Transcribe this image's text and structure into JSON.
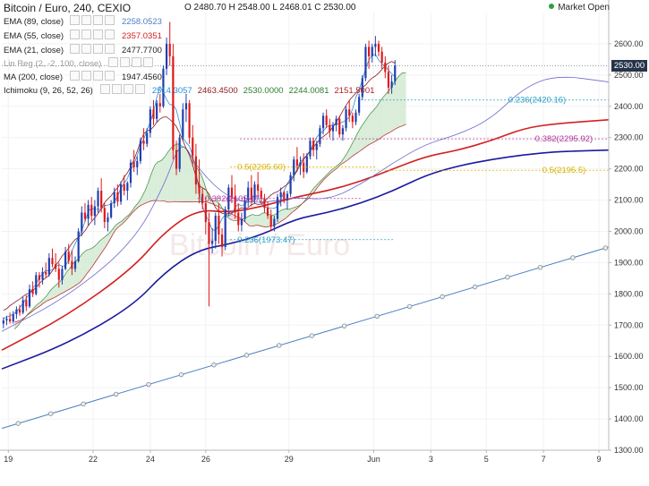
{
  "header": {
    "title": "Bitcoin / Euro, 240, CEXIO",
    "ohlc": "O 2480.70 H 2548.00 L 2468.01 C 2530.00",
    "market_status": "Market Open",
    "last_price": "2530.00"
  },
  "indicators": [
    {
      "name": "EMA (89, close)",
      "values": [
        "2258.0523"
      ],
      "color": "#4d7fc4"
    },
    {
      "name": "EMA (55, close)",
      "values": [
        "2357.0351"
      ],
      "color": "#d32020"
    },
    {
      "name": "EMA (21, close)",
      "values": [
        "2477.7700"
      ],
      "color": "#222222"
    },
    {
      "name": "Lin Reg (2, -2, 100, close)",
      "values": [],
      "color": "#999999"
    },
    {
      "name": "MA (200, close)",
      "values": [
        "1947.4560"
      ],
      "color": "#222222"
    },
    {
      "name": "Ichimoku (9, 26, 52, 26)",
      "values": [
        "2514.3057",
        "2463.4500",
        "2530.0000",
        "2244.0081",
        "2151.5001"
      ],
      "colors": [
        "#2a8fd6",
        "#8b1a1a",
        "#2e7d2e",
        "#2e7d2e",
        "#b22222"
      ]
    }
  ],
  "chart_data": {
    "type": "candlestick",
    "symbol": "Bitcoin / Euro, 240, CEXIO",
    "watermark": "Bitcoin / Euro",
    "ylim": [
      1300,
      2700
    ],
    "y_ticks": [
      1300,
      1400,
      1500,
      1600,
      1700,
      1800,
      1900,
      2000,
      2100,
      2200,
      2300,
      2400,
      2500,
      2600
    ],
    "x_ticks": [
      "19",
      "22",
      "24",
      "26",
      "29",
      "Jun",
      "3",
      "5",
      "7",
      "9"
    ],
    "x_tick_pos": [
      2,
      28,
      45.5,
      62.5,
      88,
      114,
      131.5,
      148.5,
      166,
      183
    ],
    "x_range": [
      0,
      186
    ],
    "candles": [
      [
        1705,
        1725,
        1690,
        1715
      ],
      [
        1715,
        1730,
        1700,
        1720
      ],
      [
        1720,
        1740,
        1705,
        1712
      ],
      [
        1712,
        1745,
        1705,
        1735
      ],
      [
        1735,
        1760,
        1720,
        1750
      ],
      [
        1750,
        1765,
        1730,
        1740
      ],
      [
        1740,
        1790,
        1735,
        1780
      ],
      [
        1780,
        1795,
        1745,
        1760
      ],
      [
        1760,
        1830,
        1755,
        1815
      ],
      [
        1815,
        1840,
        1790,
        1800
      ],
      [
        1800,
        1870,
        1795,
        1860
      ],
      [
        1860,
        1870,
        1820,
        1845
      ],
      [
        1845,
        1885,
        1830,
        1870
      ],
      [
        1870,
        1900,
        1850,
        1862
      ],
      [
        1862,
        1930,
        1855,
        1915
      ],
      [
        1915,
        1945,
        1885,
        1895
      ],
      [
        1895,
        1930,
        1870,
        1880
      ],
      [
        1880,
        1900,
        1820,
        1845
      ],
      [
        1845,
        1890,
        1830,
        1880
      ],
      [
        1880,
        1950,
        1875,
        1935
      ],
      [
        1935,
        1960,
        1895,
        1905
      ],
      [
        1905,
        1940,
        1860,
        1880
      ],
      [
        1880,
        1920,
        1870,
        1905
      ],
      [
        1905,
        2010,
        1900,
        2000
      ],
      [
        2000,
        2080,
        1985,
        2060
      ],
      [
        2060,
        2090,
        2030,
        2040
      ],
      [
        2040,
        2100,
        2020,
        2085
      ],
      [
        2085,
        2110,
        2035,
        2050
      ],
      [
        2050,
        2100,
        2020,
        2080
      ],
      [
        2080,
        2140,
        2060,
        2130
      ],
      [
        2130,
        2170,
        2060,
        2075
      ],
      [
        2075,
        2090,
        2010,
        2030
      ],
      [
        2030,
        2060,
        2000,
        2045
      ],
      [
        2045,
        2100,
        2040,
        2090
      ],
      [
        2090,
        2140,
        2075,
        2125
      ],
      [
        2125,
        2150,
        2080,
        2095
      ],
      [
        2095,
        2160,
        2085,
        2150
      ],
      [
        2150,
        2180,
        2115,
        2130
      ],
      [
        2130,
        2160,
        2100,
        2155
      ],
      [
        2155,
        2230,
        2140,
        2220
      ],
      [
        2220,
        2260,
        2190,
        2205
      ],
      [
        2205,
        2240,
        2180,
        2225
      ],
      [
        2225,
        2300,
        2215,
        2290
      ],
      [
        2290,
        2330,
        2260,
        2280
      ],
      [
        2280,
        2330,
        2270,
        2315
      ],
      [
        2315,
        2400,
        2300,
        2390
      ],
      [
        2390,
        2420,
        2340,
        2360
      ],
      [
        2360,
        2420,
        2350,
        2410
      ],
      [
        2410,
        2440,
        2380,
        2400
      ],
      [
        2400,
        2530,
        2395,
        2520
      ],
      [
        2520,
        2620,
        2500,
        2600
      ],
      [
        2600,
        2670,
        2530,
        2560
      ],
      [
        2560,
        2600,
        2230,
        2260
      ],
      [
        2260,
        2290,
        2180,
        2200
      ],
      [
        2200,
        2310,
        2190,
        2300
      ],
      [
        2300,
        2410,
        2290,
        2390
      ],
      [
        2390,
        2440,
        2350,
        2410
      ],
      [
        2410,
        2420,
        2280,
        2300
      ],
      [
        2300,
        2340,
        2210,
        2240
      ],
      [
        2240,
        2280,
        2120,
        2150
      ],
      [
        2150,
        2230,
        2090,
        2120
      ],
      [
        2120,
        2140,
        2070,
        2090
      ],
      [
        2090,
        2110,
        1990,
        2030
      ],
      [
        2030,
        2060,
        1760,
        1960
      ],
      [
        1960,
        2010,
        1930,
        1970
      ],
      [
        1970,
        2060,
        1945,
        2050
      ],
      [
        2050,
        2090,
        1960,
        1990
      ],
      [
        1990,
        2010,
        1920,
        1950
      ],
      [
        1950,
        2080,
        1940,
        2070
      ],
      [
        2070,
        2150,
        2050,
        2140
      ],
      [
        2140,
        2180,
        2090,
        2110
      ],
      [
        2110,
        2150,
        2040,
        2060
      ],
      [
        2060,
        2090,
        2000,
        2020
      ],
      [
        2020,
        2060,
        2000,
        2040
      ],
      [
        2040,
        2110,
        2030,
        2100
      ],
      [
        2100,
        2160,
        2080,
        2140
      ],
      [
        2140,
        2180,
        2080,
        2100
      ],
      [
        2100,
        2160,
        2090,
        2150
      ],
      [
        2150,
        2190,
        2110,
        2130
      ],
      [
        2130,
        2140,
        2090,
        2105
      ],
      [
        2105,
        2120,
        2060,
        2075
      ],
      [
        2075,
        2095,
        2040,
        2050
      ],
      [
        2050,
        2070,
        2000,
        2015
      ],
      [
        2015,
        2050,
        2000,
        2040
      ],
      [
        2040,
        2120,
        2030,
        2110
      ],
      [
        2110,
        2140,
        2080,
        2125
      ],
      [
        2125,
        2130,
        2090,
        2100
      ],
      [
        2100,
        2130,
        2070,
        2120
      ],
      [
        2120,
        2190,
        2110,
        2180
      ],
      [
        2180,
        2240,
        2160,
        2230
      ],
      [
        2230,
        2270,
        2190,
        2210
      ],
      [
        2210,
        2240,
        2180,
        2220
      ],
      [
        2220,
        2250,
        2170,
        2190
      ],
      [
        2190,
        2250,
        2185,
        2240
      ],
      [
        2240,
        2300,
        2230,
        2290
      ],
      [
        2290,
        2300,
        2240,
        2260
      ],
      [
        2260,
        2290,
        2230,
        2280
      ],
      [
        2280,
        2340,
        2270,
        2330
      ],
      [
        2330,
        2380,
        2310,
        2370
      ],
      [
        2370,
        2390,
        2330,
        2340
      ],
      [
        2340,
        2360,
        2300,
        2320
      ],
      [
        2320,
        2350,
        2290,
        2340
      ],
      [
        2340,
        2370,
        2320,
        2360
      ],
      [
        2360,
        2370,
        2300,
        2310
      ],
      [
        2310,
        2340,
        2290,
        2330
      ],
      [
        2330,
        2400,
        2320,
        2390
      ],
      [
        2390,
        2420,
        2350,
        2370
      ],
      [
        2370,
        2380,
        2330,
        2350
      ],
      [
        2350,
        2390,
        2340,
        2380
      ],
      [
        2380,
        2440,
        2370,
        2430
      ],
      [
        2430,
        2500,
        2420,
        2490
      ],
      [
        2490,
        2600,
        2480,
        2590
      ],
      [
        2590,
        2610,
        2520,
        2560
      ],
      [
        2560,
        2600,
        2540,
        2590
      ],
      [
        2590,
        2625,
        2560,
        2600
      ],
      [
        2600,
        2610,
        2560,
        2575
      ],
      [
        2575,
        2590,
        2520,
        2540
      ],
      [
        2540,
        2560,
        2490,
        2510
      ],
      [
        2510,
        2530,
        2440,
        2460
      ],
      [
        2460,
        2500,
        2440,
        2480
      ],
      [
        2480,
        2548,
        2468,
        2530
      ]
    ],
    "lines": {
      "ma200": {
        "color": "#4d7fc4",
        "points": [
          [
            0,
            1370
          ],
          [
            186,
            1950
          ]
        ],
        "markers_every": 10
      },
      "ema89": {
        "color": "#1a1aa0",
        "points": [
          [
            0,
            1560
          ],
          [
            20,
            1640
          ],
          [
            40,
            1760
          ],
          [
            50,
            1870
          ],
          [
            60,
            1940
          ],
          [
            70,
            1960
          ],
          [
            80,
            1990
          ],
          [
            90,
            2040
          ],
          [
            100,
            2060
          ],
          [
            110,
            2090
          ],
          [
            120,
            2130
          ],
          [
            130,
            2180
          ],
          [
            140,
            2210
          ],
          [
            150,
            2230
          ],
          [
            160,
            2245
          ],
          [
            170,
            2255
          ],
          [
            186,
            2260
          ]
        ]
      },
      "ema55": {
        "color": "#d32020",
        "points": [
          [
            0,
            1620
          ],
          [
            20,
            1730
          ],
          [
            40,
            1880
          ],
          [
            50,
            2000
          ],
          [
            60,
            2070
          ],
          [
            70,
            2060
          ],
          [
            80,
            2080
          ],
          [
            90,
            2110
          ],
          [
            100,
            2130
          ],
          [
            110,
            2160
          ],
          [
            120,
            2200
          ],
          [
            130,
            2240
          ],
          [
            140,
            2260
          ],
          [
            150,
            2290
          ],
          [
            160,
            2330
          ],
          [
            170,
            2345
          ],
          [
            186,
            2357
          ]
        ]
      },
      "ema21": {
        "color": "#6a6ad0",
        "points": [
          [
            0,
            1680
          ],
          [
            20,
            1790
          ],
          [
            40,
            1960
          ],
          [
            50,
            2150
          ],
          [
            55,
            2300
          ],
          [
            60,
            2200
          ],
          [
            70,
            2100
          ],
          [
            80,
            2090
          ],
          [
            90,
            2110
          ],
          [
            100,
            2100
          ],
          [
            110,
            2150
          ],
          [
            120,
            2220
          ],
          [
            130,
            2280
          ],
          [
            140,
            2310
          ],
          [
            150,
            2360
          ],
          [
            160,
            2460
          ],
          [
            170,
            2500
          ],
          [
            186,
            2478
          ]
        ]
      }
    },
    "fibonacci": [
      {
        "label": "0.236(2420.16)",
        "value": 2420.16,
        "color": "#2aa0c8"
      },
      {
        "label": "0.382(2295.92)",
        "value": 2295.92,
        "color": "#b03a9a"
      },
      {
        "label": "0.5(2205.60)",
        "value": 2205.6,
        "color": "#d9b300"
      },
      {
        "label": "0.5(2195.5)",
        "value": 2195.5,
        "color": "#d9b300"
      },
      {
        "label": "0.382(2105.17)",
        "value": 2105.17,
        "color": "#b03a9a"
      },
      {
        "label": "0.236(1973.47)",
        "value": 1973.47,
        "color": "#2aa0c8"
      }
    ],
    "colors": {
      "up": "#1f3fb0",
      "down": "#e01818",
      "cloud_bull": "#cfe8cf",
      "cloud_bear": "#f6d0d0"
    }
  }
}
